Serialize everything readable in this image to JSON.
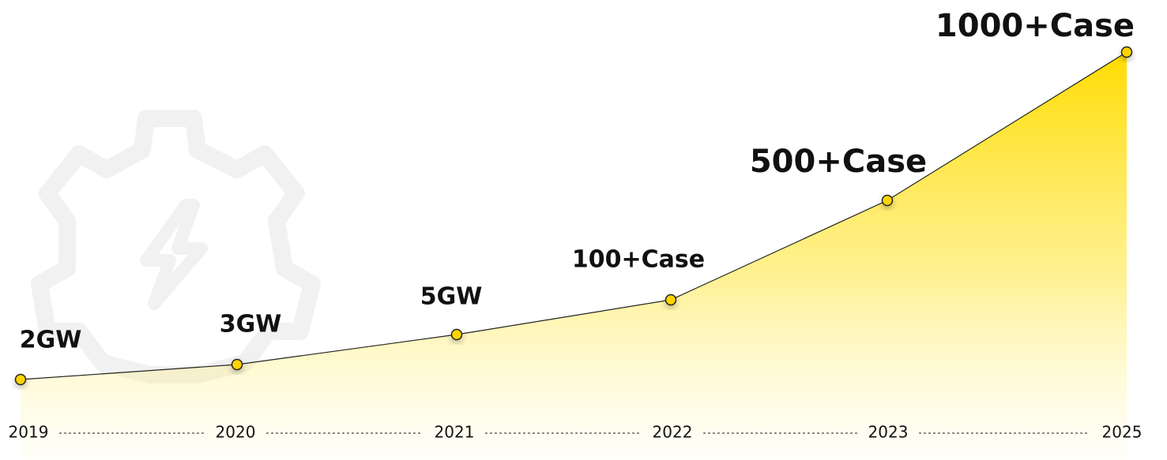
{
  "milestones": [
    {
      "year": "2019",
      "label": "2GW"
    },
    {
      "year": "2020",
      "label": "3GW"
    },
    {
      "year": "2021",
      "label": "5GW"
    },
    {
      "year": "2022",
      "label": "100+Case"
    },
    {
      "year": "2023",
      "label": "500+Case"
    },
    {
      "year": "2025",
      "label": "1000+Case"
    }
  ]
}
